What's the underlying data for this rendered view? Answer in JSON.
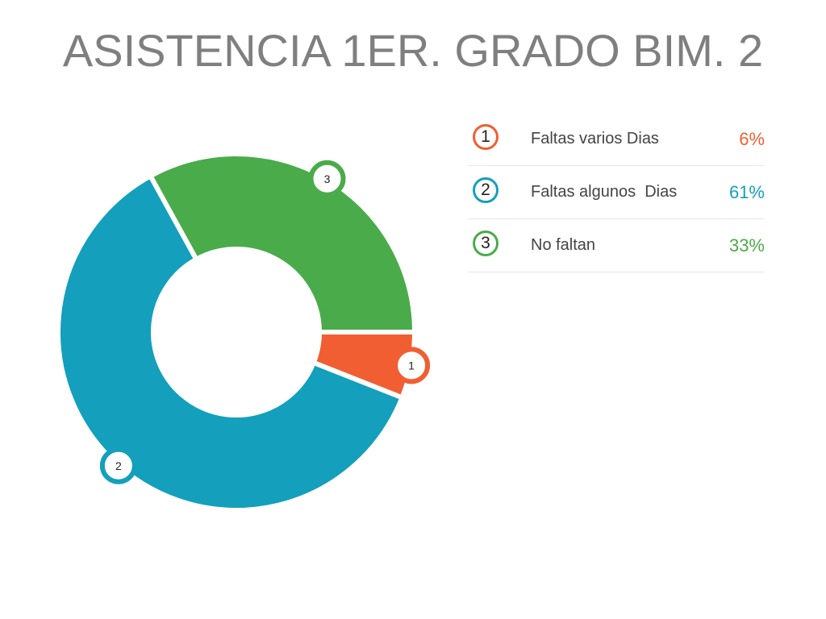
{
  "title": "ASISTENCIA 1ER. GRADO BIM. 2",
  "chart_data": {
    "type": "pie",
    "variant": "donut",
    "title": "ASISTENCIA 1ER. GRADO BIM. 2",
    "slices": [
      {
        "id": "1",
        "label": "Faltas varios Dias",
        "value": 6,
        "display": "6%",
        "color": "#f15e32"
      },
      {
        "id": "2",
        "label": "Faltas algunos  Dias",
        "value": 61,
        "display": "61%",
        "color": "#149fbc"
      },
      {
        "id": "3",
        "label": "No faltan",
        "value": 33,
        "display": "33%",
        "color": "#4aab4a"
      }
    ],
    "legend_placement": "right"
  }
}
